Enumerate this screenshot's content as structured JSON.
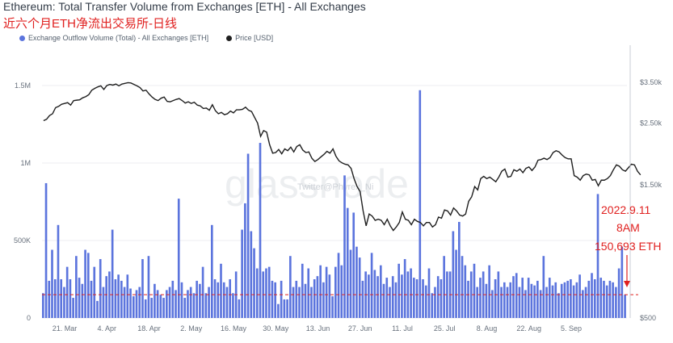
{
  "header": {
    "title": "Ethereum: Total Transfer Volume from Exchanges [ETH] - All Exchanges",
    "subtitle": "近六个月ETH净流出交易所-日线"
  },
  "legend": {
    "outflow_label": "Exchange Outflow Volume (Total) - All Exchanges [ETH]",
    "price_label": "Price [USD]"
  },
  "colors": {
    "bar": "#5b74dd",
    "price": "#1f1f1f",
    "annotation": "#e0201f",
    "reference": "#e0201f"
  },
  "watermark": {
    "text": "glassnode",
    "handle": "Twitter@Phyrex_Ni"
  },
  "annotation": {
    "line1": "2022.9.11",
    "line2": "8AM",
    "line3": "150,693 ETH"
  },
  "chart_data": {
    "type": "bar+line",
    "start_date": "2022-03-14",
    "x_ticks": [
      "21. Mar",
      "4. Apr",
      "18. Apr",
      "2. May",
      "16. May",
      "30. May",
      "13. Jun",
      "27. Jun",
      "11. Jul",
      "25. Jul",
      "8. Aug",
      "22. Aug",
      "5. Sep"
    ],
    "y_left_ticks": [
      "0",
      "500K",
      "1M",
      "1.5M"
    ],
    "y_left_range": [
      0,
      1750000
    ],
    "y_right_ticks": [
      "$500",
      "$1.50k",
      "$2.50k",
      "$3.50k"
    ],
    "y_right_values": [
      500,
      1500,
      2500,
      3500
    ],
    "reference_value": 150693,
    "series": [
      {
        "name": "Exchange Outflow Volume (Total) - All Exchanges [ETH]",
        "type": "bar",
        "values": [
          160000,
          870000,
          240000,
          440000,
          250000,
          600000,
          250000,
          200000,
          330000,
          250000,
          130000,
          400000,
          260000,
          220000,
          440000,
          420000,
          240000,
          330000,
          110000,
          380000,
          200000,
          270000,
          300000,
          570000,
          250000,
          280000,
          240000,
          200000,
          280000,
          190000,
          140000,
          180000,
          200000,
          380000,
          120000,
          400000,
          130000,
          220000,
          180000,
          150000,
          130000,
          180000,
          200000,
          240000,
          180000,
          770000,
          230000,
          130000,
          180000,
          200000,
          160000,
          240000,
          220000,
          330000,
          160000,
          200000,
          600000,
          250000,
          230000,
          350000,
          230000,
          200000,
          250000,
          160000,
          300000,
          120000,
          570000,
          740000,
          1060000,
          560000,
          450000,
          320000,
          1130000,
          300000,
          320000,
          330000,
          240000,
          230000,
          90000,
          240000,
          120000,
          120000,
          400000,
          200000,
          240000,
          200000,
          350000,
          220000,
          320000,
          200000,
          250000,
          270000,
          340000,
          230000,
          330000,
          280000,
          140000,
          330000,
          420000,
          340000,
          920000,
          710000,
          440000,
          680000,
          460000,
          390000,
          240000,
          300000,
          280000,
          420000,
          310000,
          270000,
          340000,
          220000,
          260000,
          200000,
          270000,
          230000,
          350000,
          280000,
          380000,
          300000,
          320000,
          260000,
          250000,
          1470000,
          250000,
          210000,
          320000,
          160000,
          200000,
          270000,
          250000,
          400000,
          300000,
          300000,
          560000,
          440000,
          620000,
          400000,
          340000,
          240000,
          300000,
          350000,
          200000,
          260000,
          300000,
          220000,
          340000,
          180000,
          250000,
          300000,
          200000,
          230000,
          200000,
          230000,
          270000,
          290000,
          200000,
          260000,
          180000,
          260000,
          220000,
          210000,
          240000,
          180000,
          400000,
          200000,
          260000,
          210000,
          230000,
          160000,
          220000,
          230000,
          240000,
          250000,
          210000,
          230000,
          280000,
          180000,
          200000,
          240000,
          290000,
          250000,
          800000,
          260000,
          240000,
          210000,
          240000,
          230000,
          200000,
          320000,
          460000,
          150000
        ]
      },
      {
        "name": "Price [USD]",
        "type": "line",
        "values": [
          2550,
          2580,
          2660,
          2700,
          2840,
          2870,
          2920,
          2940,
          2960,
          2900,
          3010,
          3020,
          3030,
          3080,
          3110,
          3160,
          3280,
          3330,
          3370,
          3400,
          3300,
          3410,
          3440,
          3420,
          3450,
          3400,
          3450,
          3470,
          3490,
          3480,
          3440,
          3400,
          3350,
          3260,
          3280,
          3180,
          3100,
          3040,
          3010,
          3070,
          3100,
          2990,
          2980,
          3010,
          3040,
          3060,
          3010,
          2950,
          2980,
          2940,
          2970,
          2900,
          2880,
          2820,
          2830,
          2780,
          2910,
          2770,
          2700,
          2730,
          2680,
          2700,
          2760,
          2720,
          2790,
          2790,
          2800,
          2850,
          2780,
          2750,
          2620,
          2500,
          2240,
          2350,
          2320,
          2090,
          1950,
          1960,
          2010,
          1940,
          2020,
          1990,
          2050,
          1970,
          2060,
          2090,
          2000,
          1960,
          1970,
          1870,
          1820,
          1850,
          1890,
          1930,
          1980,
          1950,
          2020,
          1900,
          1830,
          1800,
          1780,
          1770,
          1720,
          1580,
          1480,
          1420,
          1210,
          1070,
          1180,
          1160,
          1120,
          1130,
          1120,
          1080,
          1130,
          1070,
          1030,
          1060,
          1100,
          1200,
          1130,
          1120,
          1080,
          1130,
          1110,
          1100,
          1070,
          1100,
          1100,
          1060,
          1080,
          1150,
          1140,
          1220,
          1210,
          1170,
          1240,
          1210,
          1170,
          1160,
          1180,
          1310,
          1360,
          1480,
          1440,
          1580,
          1610,
          1580,
          1600,
          1570,
          1540,
          1600,
          1680,
          1710,
          1600,
          1610,
          1700,
          1680,
          1710,
          1660,
          1720,
          1740,
          1690,
          1740,
          1840,
          1850,
          1870,
          1850,
          1880,
          1960,
          1990,
          1970,
          1920,
          1880,
          1860,
          1860,
          1620,
          1600,
          1560,
          1620,
          1640,
          1630,
          1560,
          1570,
          1490,
          1560,
          1560,
          1580,
          1620,
          1700,
          1770,
          1750,
          1700,
          1680,
          1730,
          1780,
          1770,
          1680,
          1630
        ]
      }
    ]
  }
}
